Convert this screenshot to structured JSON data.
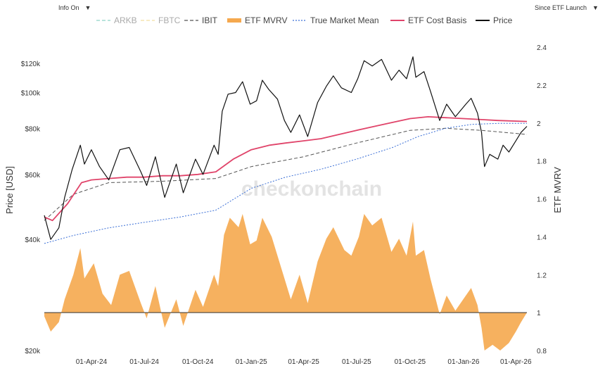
{
  "controls": {
    "info_label": "Info On",
    "info_arrow": "▼",
    "range_label": "Since ETF Launch",
    "range_arrow": "▼"
  },
  "watermark": "checkonchain",
  "legend": [
    {
      "name": "ARKB",
      "color": "#8fd3c8",
      "style": "dash",
      "faded": true
    },
    {
      "name": "FBTC",
      "color": "#f2dfa0",
      "style": "dash",
      "faded": true
    },
    {
      "name": "IBIT",
      "color": "#555555",
      "style": "dash",
      "faded": false
    },
    {
      "name": "ETF MVRV",
      "color": "#f5a84e",
      "style": "area",
      "faded": false
    },
    {
      "name": "True Market Mean",
      "color": "#3b6fd6",
      "style": "dot",
      "faded": false
    },
    {
      "name": "ETF Cost Basis",
      "color": "#e0446a",
      "style": "solid",
      "faded": false
    },
    {
      "name": "Price",
      "color": "#111111",
      "style": "solid",
      "faded": false
    }
  ],
  "chart_data": {
    "type": "line",
    "x_tick_labels": [
      "01-Apr-24",
      "01-Jul-24",
      "01-Oct-24",
      "01-Jan-25",
      "01-Apr-25",
      "01-Jul-25",
      "01-Oct-25",
      "01-Jan-26",
      "01-Apr-26"
    ],
    "x_range": [
      "2024-01-11",
      "2026-04-20"
    ],
    "y_left": {
      "label": "Price [USD]",
      "scale": "log",
      "range": [
        20000,
        130000
      ],
      "ticks": [
        20000,
        40000,
        60000,
        80000,
        100000,
        120000
      ],
      "tick_labels": [
        "$20k",
        "$40k",
        "$60k",
        "$80k",
        "$100k",
        "$120k"
      ]
    },
    "y_right": {
      "label": "ETF MVRV",
      "scale": "linear",
      "range": [
        0.8,
        2.4
      ],
      "ticks": [
        0.8,
        1.0,
        1.2,
        1.4,
        1.6,
        1.8,
        2.0,
        2.2,
        2.4
      ],
      "tick_labels": [
        "0.8",
        "1",
        "1.2",
        "1.4",
        "1.6",
        "1.8",
        "2",
        "2.2",
        "2.4"
      ]
    },
    "grid": false,
    "legend_position": "top",
    "series": [
      {
        "name": "Price",
        "axis": "left",
        "color": "#111111",
        "points": [
          [
            "2024-01-11",
            46500
          ],
          [
            "2024-01-22",
            40000
          ],
          [
            "2024-02-05",
            43000
          ],
          [
            "2024-02-15",
            52000
          ],
          [
            "2024-02-28",
            62000
          ],
          [
            "2024-03-13",
            72000
          ],
          [
            "2024-03-20",
            64000
          ],
          [
            "2024-04-01",
            70000
          ],
          [
            "2024-04-15",
            63000
          ],
          [
            "2024-05-01",
            58000
          ],
          [
            "2024-05-20",
            70000
          ],
          [
            "2024-06-05",
            71000
          ],
          [
            "2024-06-25",
            61000
          ],
          [
            "2024-07-05",
            56000
          ],
          [
            "2024-07-20",
            67000
          ],
          [
            "2024-08-05",
            52000
          ],
          [
            "2024-08-25",
            64000
          ],
          [
            "2024-09-06",
            53500
          ],
          [
            "2024-09-27",
            66000
          ],
          [
            "2024-10-10",
            60000
          ],
          [
            "2024-10-29",
            72000
          ],
          [
            "2024-11-05",
            68000
          ],
          [
            "2024-11-12",
            89000
          ],
          [
            "2024-11-22",
            99000
          ],
          [
            "2024-12-05",
            100000
          ],
          [
            "2024-12-17",
            107000
          ],
          [
            "2024-12-30",
            93000
          ],
          [
            "2025-01-10",
            95000
          ],
          [
            "2025-01-20",
            108000
          ],
          [
            "2025-01-31",
            102000
          ],
          [
            "2025-02-15",
            96000
          ],
          [
            "2025-02-27",
            84000
          ],
          [
            "2025-03-10",
            78000
          ],
          [
            "2025-03-25",
            87000
          ],
          [
            "2025-04-08",
            76000
          ],
          [
            "2025-04-25",
            94000
          ],
          [
            "2025-05-10",
            104000
          ],
          [
            "2025-05-22",
            111000
          ],
          [
            "2025-06-05",
            103000
          ],
          [
            "2025-06-22",
            100000
          ],
          [
            "2025-07-03",
            109000
          ],
          [
            "2025-07-14",
            122000
          ],
          [
            "2025-07-28",
            118000
          ],
          [
            "2025-08-13",
            123000
          ],
          [
            "2025-08-30",
            108000
          ],
          [
            "2025-09-12",
            115000
          ],
          [
            "2025-09-25",
            109000
          ],
          [
            "2025-10-06",
            125000
          ],
          [
            "2025-10-11",
            110000
          ],
          [
            "2025-10-25",
            114000
          ],
          [
            "2025-11-05",
            101000
          ],
          [
            "2025-11-21",
            84000
          ],
          [
            "2025-12-03",
            93000
          ],
          [
            "2025-12-18",
            86000
          ],
          [
            "2026-01-05",
            93000
          ],
          [
            "2026-01-14",
            96500
          ],
          [
            "2026-01-25",
            88000
          ],
          [
            "2026-02-01",
            78000
          ],
          [
            "2026-02-06",
            63000
          ],
          [
            "2026-02-15",
            68000
          ],
          [
            "2026-03-01",
            66000
          ],
          [
            "2026-03-10",
            72000
          ],
          [
            "2026-03-20",
            69000
          ],
          [
            "2026-04-01",
            74000
          ],
          [
            "2026-04-10",
            78000
          ],
          [
            "2026-04-20",
            81000
          ]
        ]
      },
      {
        "name": "ETF Cost Basis",
        "axis": "left",
        "color": "#e0446a",
        "points": [
          [
            "2024-01-11",
            46000
          ],
          [
            "2024-01-25",
            45000
          ],
          [
            "2024-02-20",
            50000
          ],
          [
            "2024-03-15",
            57000
          ],
          [
            "2024-04-01",
            58000
          ],
          [
            "2024-05-01",
            58500
          ],
          [
            "2024-06-01",
            59000
          ],
          [
            "2024-07-01",
            59000
          ],
          [
            "2024-08-01",
            59500
          ],
          [
            "2024-09-01",
            59500
          ],
          [
            "2024-10-01",
            60000
          ],
          [
            "2024-11-01",
            61000
          ],
          [
            "2024-12-01",
            66000
          ],
          [
            "2025-01-01",
            70000
          ],
          [
            "2025-02-01",
            72000
          ],
          [
            "2025-03-01",
            73000
          ],
          [
            "2025-04-01",
            74000
          ],
          [
            "2025-05-01",
            75000
          ],
          [
            "2025-06-01",
            77000
          ],
          [
            "2025-07-01",
            79000
          ],
          [
            "2025-08-01",
            81000
          ],
          [
            "2025-09-01",
            83000
          ],
          [
            "2025-10-01",
            85000
          ],
          [
            "2025-11-01",
            86000
          ],
          [
            "2025-12-01",
            85500
          ],
          [
            "2026-01-01",
            85000
          ],
          [
            "2026-02-01",
            84500
          ],
          [
            "2026-03-01",
            84000
          ],
          [
            "2026-04-20",
            83500
          ]
        ]
      },
      {
        "name": "True Market Mean",
        "axis": "left",
        "color": "#3b6fd6",
        "points": [
          [
            "2024-01-11",
            39000
          ],
          [
            "2024-03-01",
            41000
          ],
          [
            "2024-05-01",
            43000
          ],
          [
            "2024-07-01",
            44500
          ],
          [
            "2024-09-01",
            46000
          ],
          [
            "2024-11-01",
            48000
          ],
          [
            "2025-01-01",
            55000
          ],
          [
            "2025-03-01",
            59000
          ],
          [
            "2025-05-01",
            62000
          ],
          [
            "2025-07-01",
            66000
          ],
          [
            "2025-09-01",
            71000
          ],
          [
            "2025-10-15",
            76000
          ],
          [
            "2025-12-01",
            80000
          ],
          [
            "2026-01-15",
            82000
          ],
          [
            "2026-03-01",
            82500
          ],
          [
            "2026-04-20",
            82500
          ]
        ]
      },
      {
        "name": "IBIT",
        "axis": "left",
        "color": "#555555",
        "points": [
          [
            "2024-01-11",
            45000
          ],
          [
            "2024-03-01",
            53000
          ],
          [
            "2024-05-01",
            57000
          ],
          [
            "2024-08-01",
            57500
          ],
          [
            "2024-11-01",
            58500
          ],
          [
            "2025-01-01",
            63000
          ],
          [
            "2025-04-01",
            67000
          ],
          [
            "2025-07-01",
            73000
          ],
          [
            "2025-10-01",
            79000
          ],
          [
            "2025-12-01",
            80000
          ],
          [
            "2026-02-01",
            79000
          ],
          [
            "2026-04-20",
            77000
          ]
        ]
      },
      {
        "name": "ETF MVRV",
        "axis": "right",
        "color": "#f5a84e",
        "points": [
          [
            "2024-01-11",
            0.98
          ],
          [
            "2024-01-22",
            0.9
          ],
          [
            "2024-02-05",
            0.95
          ],
          [
            "2024-02-15",
            1.07
          ],
          [
            "2024-03-01",
            1.2
          ],
          [
            "2024-03-13",
            1.34
          ],
          [
            "2024-03-20",
            1.18
          ],
          [
            "2024-04-05",
            1.26
          ],
          [
            "2024-04-20",
            1.1
          ],
          [
            "2024-05-05",
            1.04
          ],
          [
            "2024-05-20",
            1.2
          ],
          [
            "2024-06-05",
            1.22
          ],
          [
            "2024-06-25",
            1.05
          ],
          [
            "2024-07-05",
            0.97
          ],
          [
            "2024-07-20",
            1.14
          ],
          [
            "2024-08-05",
            0.92
          ],
          [
            "2024-08-25",
            1.07
          ],
          [
            "2024-09-06",
            0.93
          ],
          [
            "2024-09-27",
            1.12
          ],
          [
            "2024-10-10",
            1.03
          ],
          [
            "2024-10-29",
            1.2
          ],
          [
            "2024-11-05",
            1.14
          ],
          [
            "2024-11-15",
            1.41
          ],
          [
            "2024-11-25",
            1.5
          ],
          [
            "2024-12-10",
            1.45
          ],
          [
            "2024-12-17",
            1.52
          ],
          [
            "2024-12-30",
            1.36
          ],
          [
            "2025-01-10",
            1.38
          ],
          [
            "2025-01-20",
            1.5
          ],
          [
            "2025-02-05",
            1.4
          ],
          [
            "2025-02-25",
            1.2
          ],
          [
            "2025-03-10",
            1.07
          ],
          [
            "2025-03-25",
            1.2
          ],
          [
            "2025-04-08",
            1.05
          ],
          [
            "2025-04-25",
            1.27
          ],
          [
            "2025-05-10",
            1.39
          ],
          [
            "2025-05-22",
            1.45
          ],
          [
            "2025-06-10",
            1.33
          ],
          [
            "2025-06-22",
            1.3
          ],
          [
            "2025-07-05",
            1.4
          ],
          [
            "2025-07-14",
            1.52
          ],
          [
            "2025-07-28",
            1.46
          ],
          [
            "2025-08-13",
            1.5
          ],
          [
            "2025-08-30",
            1.32
          ],
          [
            "2025-09-12",
            1.39
          ],
          [
            "2025-09-25",
            1.3
          ],
          [
            "2025-10-06",
            1.48
          ],
          [
            "2025-10-11",
            1.3
          ],
          [
            "2025-10-25",
            1.33
          ],
          [
            "2025-11-05",
            1.18
          ],
          [
            "2025-11-21",
            0.99
          ],
          [
            "2025-12-03",
            1.09
          ],
          [
            "2025-12-18",
            1.01
          ],
          [
            "2026-01-05",
            1.09
          ],
          [
            "2026-01-14",
            1.13
          ],
          [
            "2026-01-25",
            1.04
          ],
          [
            "2026-02-01",
            0.92
          ],
          [
            "2026-02-06",
            0.8
          ],
          [
            "2026-02-20",
            0.83
          ],
          [
            "2026-03-05",
            0.8
          ],
          [
            "2026-03-20",
            0.84
          ],
          [
            "2026-04-01",
            0.9
          ],
          [
            "2026-04-10",
            0.95
          ],
          [
            "2026-04-20",
            1.0
          ]
        ]
      }
    ]
  }
}
